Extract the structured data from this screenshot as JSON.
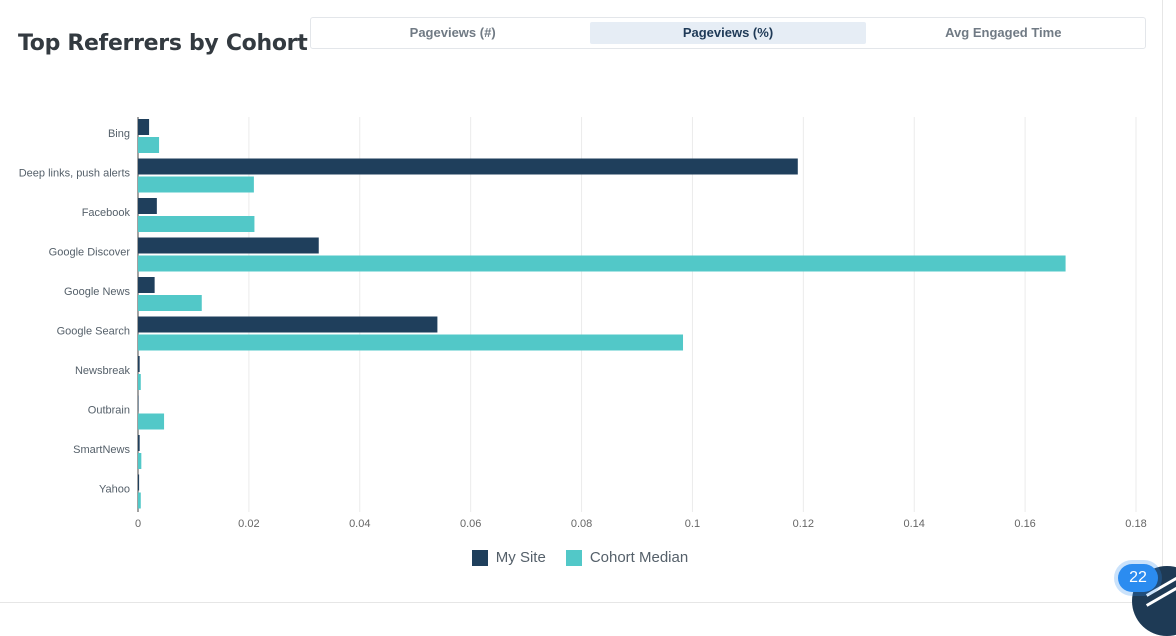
{
  "header": {
    "title": "Top Referrers by Cohort"
  },
  "tabs": [
    {
      "label": "Pageviews (#)",
      "active": false
    },
    {
      "label": "Pageviews (%)",
      "active": true
    },
    {
      "label": "Avg Engaged Time",
      "active": false
    }
  ],
  "chart_data": {
    "type": "bar",
    "orientation": "horizontal",
    "categories": [
      "Bing",
      "Deep links, push alerts",
      "Facebook",
      "Google Discover",
      "Google News",
      "Google Search",
      "Newsbreak",
      "Outbrain",
      "SmartNews",
      "Yahoo"
    ],
    "series": [
      {
        "name": "My Site",
        "color": "#1f3f5c",
        "values": [
          0.002,
          0.119,
          0.0034,
          0.0326,
          0.003,
          0.054,
          0.0003,
          0.0001,
          0.0003,
          0.0002
        ]
      },
      {
        "name": "Cohort Median",
        "color": "#52c8c8",
        "values": [
          0.0038,
          0.0209,
          0.021,
          0.1673,
          0.0115,
          0.0983,
          0.0005,
          0.0047,
          0.0006,
          0.0005
        ]
      }
    ],
    "xlim": [
      0,
      0.18
    ],
    "xticks": [
      "0",
      "0.02",
      "0.04",
      "0.06",
      "0.08",
      "0.1",
      "0.12",
      "0.14",
      "0.16",
      "0.18"
    ],
    "grid": true,
    "legend_position": "bottom-center"
  },
  "badge": {
    "count": "22"
  }
}
